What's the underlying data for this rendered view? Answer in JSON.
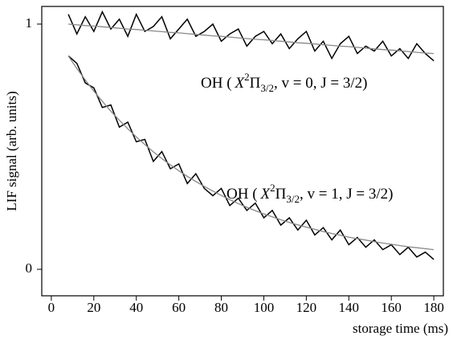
{
  "chart_data": {
    "type": "line",
    "xlabel": "storage time (ms)",
    "ylabel": "LIF signal (arb. units)",
    "annotations": [
      [
        "OH (",
        "X",
        "2",
        "Π",
        "3/2",
        ", v = 0, J = 3/2)"
      ],
      [
        "OH (",
        "X",
        "2",
        "Π",
        "3/2",
        ", v = 1, J = 3/2)"
      ]
    ],
    "x": [
      8,
      12,
      16,
      20,
      24,
      28,
      32,
      36,
      40,
      44,
      48,
      52,
      56,
      60,
      64,
      68,
      72,
      76,
      80,
      84,
      88,
      92,
      96,
      100,
      104,
      108,
      112,
      116,
      120,
      124,
      128,
      132,
      136,
      140,
      144,
      148,
      152,
      156,
      160,
      164,
      168,
      172,
      176,
      180
    ],
    "series": [
      {
        "color": "#000000",
        "values": [
          1.04,
          0.96,
          1.03,
          0.97,
          1.05,
          0.98,
          1.02,
          0.95,
          1.04,
          0.97,
          0.99,
          1.03,
          0.94,
          0.98,
          1.02,
          0.95,
          0.97,
          1.0,
          0.93,
          0.96,
          0.98,
          0.91,
          0.95,
          0.97,
          0.92,
          0.96,
          0.9,
          0.94,
          0.97,
          0.89,
          0.93,
          0.86,
          0.92,
          0.95,
          0.88,
          0.91,
          0.89,
          0.93,
          0.87,
          0.9,
          0.86,
          0.92,
          0.88,
          0.85
        ]
      },
      {
        "color": "#888888",
        "values": [
          1.0,
          0.997,
          0.994,
          0.992,
          0.989,
          0.986,
          0.983,
          0.98,
          0.978,
          0.975,
          0.972,
          0.969,
          0.966,
          0.964,
          0.961,
          0.958,
          0.955,
          0.952,
          0.95,
          0.947,
          0.944,
          0.941,
          0.938,
          0.936,
          0.933,
          0.93,
          0.927,
          0.924,
          0.922,
          0.919,
          0.916,
          0.913,
          0.91,
          0.908,
          0.905,
          0.902,
          0.899,
          0.896,
          0.894,
          0.891,
          0.888,
          0.885,
          0.882,
          0.88
        ]
      },
      {
        "color": "#000000",
        "values": [
          0.87,
          0.84,
          0.76,
          0.74,
          0.66,
          0.67,
          0.58,
          0.6,
          0.52,
          0.53,
          0.44,
          0.48,
          0.41,
          0.43,
          0.35,
          0.39,
          0.33,
          0.3,
          0.33,
          0.26,
          0.29,
          0.24,
          0.27,
          0.21,
          0.24,
          0.18,
          0.21,
          0.16,
          0.2,
          0.14,
          0.17,
          0.12,
          0.16,
          0.1,
          0.13,
          0.09,
          0.12,
          0.08,
          0.1,
          0.06,
          0.09,
          0.05,
          0.07,
          0.04
        ]
      },
      {
        "color": "#888888",
        "values": [
          0.87,
          0.819,
          0.772,
          0.727,
          0.685,
          0.645,
          0.608,
          0.573,
          0.54,
          0.509,
          0.479,
          0.452,
          0.426,
          0.402,
          0.379,
          0.358,
          0.338,
          0.319,
          0.301,
          0.284,
          0.268,
          0.253,
          0.239,
          0.226,
          0.214,
          0.202,
          0.191,
          0.181,
          0.172,
          0.163,
          0.154,
          0.146,
          0.139,
          0.131,
          0.125,
          0.119,
          0.113,
          0.107,
          0.102,
          0.097,
          0.092,
          0.088,
          0.084,
          0.08
        ]
      }
    ],
    "xlim": [
      -4.5,
      184.5
    ],
    "xticks": [
      0,
      20,
      40,
      60,
      80,
      100,
      120,
      140,
      160,
      180
    ],
    "ylim": [
      -0.108,
      1.072
    ],
    "yticks": [
      0,
      1
    ]
  }
}
